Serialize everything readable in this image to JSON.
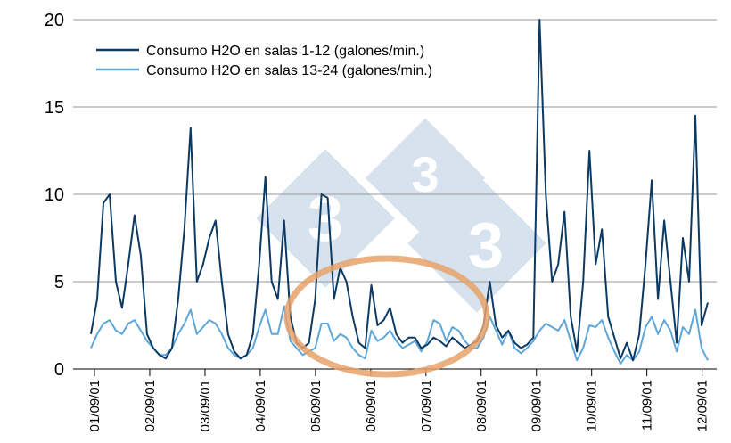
{
  "chart_data": {
    "type": "line",
    "title": "",
    "xlabel": "",
    "ylabel": "",
    "ylim": [
      0,
      20
    ],
    "yticks": [
      0,
      5,
      10,
      15,
      20
    ],
    "xlim": [
      0,
      99
    ],
    "grid": "horizontal",
    "legend": "top-left",
    "categories": [
      "01/09/01",
      "02/09/01",
      "03/09/01",
      "04/09/01",
      "05/09/01",
      "06/09/01",
      "07/09/01",
      "08/09/01",
      "09/09/01",
      "10/09/01",
      "11/09/01",
      "12/09/01"
    ],
    "x": [
      0,
      1,
      2,
      3,
      4,
      5,
      6,
      7,
      8,
      9,
      10,
      11,
      12,
      13,
      14,
      15,
      16,
      17,
      18,
      19,
      20,
      21,
      22,
      23,
      24,
      25,
      26,
      27,
      28,
      29,
      30,
      31,
      32,
      33,
      34,
      35,
      36,
      37,
      38,
      39,
      40,
      41,
      42,
      43,
      44,
      45,
      46,
      47,
      48,
      49,
      50,
      51,
      52,
      53,
      54,
      55,
      56,
      57,
      58,
      59,
      60,
      61,
      62,
      63,
      64,
      65,
      66,
      67,
      68,
      69,
      70,
      71,
      72,
      73,
      74,
      75,
      76,
      77,
      78,
      79,
      80,
      81,
      82,
      83,
      84,
      85,
      86,
      87,
      88,
      89,
      90,
      91,
      92,
      93,
      94,
      95,
      96,
      97,
      98,
      99
    ],
    "series": [
      {
        "name": "Consumo H2O en salas 1-12 (galones/min.)",
        "color": "#0d3a63",
        "values": [
          2.0,
          4.0,
          9.5,
          10.0,
          5.0,
          3.5,
          6.0,
          8.8,
          6.5,
          2.0,
          1.2,
          0.8,
          0.6,
          1.2,
          4.0,
          8.0,
          13.8,
          5.0,
          6.0,
          7.5,
          8.5,
          5.0,
          2.0,
          1.0,
          0.6,
          0.8,
          2.0,
          6.0,
          11.0,
          5.0,
          4.0,
          8.5,
          3.0,
          1.5,
          1.2,
          1.5,
          4.0,
          10.0,
          9.8,
          4.0,
          5.8,
          5.0,
          3.0,
          1.5,
          1.2,
          4.8,
          2.5,
          2.8,
          3.5,
          2.0,
          1.5,
          1.8,
          1.8,
          1.2,
          1.4,
          1.8,
          1.6,
          1.3,
          1.8,
          1.5,
          1.2,
          1.4,
          1.6,
          2.5,
          5.0,
          2.5,
          1.8,
          2.2,
          1.5,
          1.2,
          1.4,
          1.8,
          20.0,
          10.0,
          5.0,
          6.0,
          9.0,
          3.0,
          1.0,
          5.0,
          12.5,
          6.0,
          8.0,
          3.0,
          1.8,
          0.6,
          1.5,
          0.5,
          2.0,
          6.0,
          10.8,
          4.0,
          8.5,
          5.0,
          1.5,
          7.5,
          5.0,
          14.5,
          2.5,
          3.8
        ]
      },
      {
        "name": "Consumo H2O en salas 13-24 (galones/min.)",
        "color": "#5ea6d8",
        "values": [
          1.2,
          2.0,
          2.6,
          2.8,
          2.2,
          2.0,
          2.6,
          2.8,
          2.2,
          1.6,
          1.2,
          0.8,
          0.8,
          1.2,
          2.0,
          2.6,
          3.4,
          2.0,
          2.4,
          2.8,
          2.6,
          2.0,
          1.2,
          0.8,
          0.6,
          0.8,
          1.2,
          2.4,
          3.4,
          2.0,
          2.0,
          3.6,
          1.6,
          1.2,
          0.8,
          1.0,
          1.2,
          2.6,
          2.6,
          1.6,
          2.0,
          1.8,
          1.2,
          0.8,
          0.6,
          2.2,
          1.6,
          1.8,
          2.2,
          1.6,
          1.2,
          1.4,
          1.6,
          1.0,
          1.6,
          2.8,
          2.6,
          1.6,
          2.4,
          2.2,
          1.6,
          1.2,
          1.2,
          1.8,
          3.0,
          2.2,
          1.4,
          2.2,
          1.2,
          0.9,
          1.2,
          1.6,
          2.2,
          2.6,
          2.4,
          2.2,
          2.8,
          1.6,
          0.5,
          1.2,
          2.5,
          2.4,
          2.8,
          1.8,
          1.0,
          0.3,
          0.8,
          0.5,
          1.0,
          2.4,
          3.0,
          2.0,
          2.8,
          2.2,
          1.0,
          2.4,
          2.0,
          3.4,
          1.2,
          0.5
        ]
      }
    ]
  },
  "annotation": {
    "watermark_digits": [
      "3",
      "3",
      "3"
    ],
    "highlight_color": "#e8a26a",
    "watermark_color": "#b8cbe2"
  }
}
